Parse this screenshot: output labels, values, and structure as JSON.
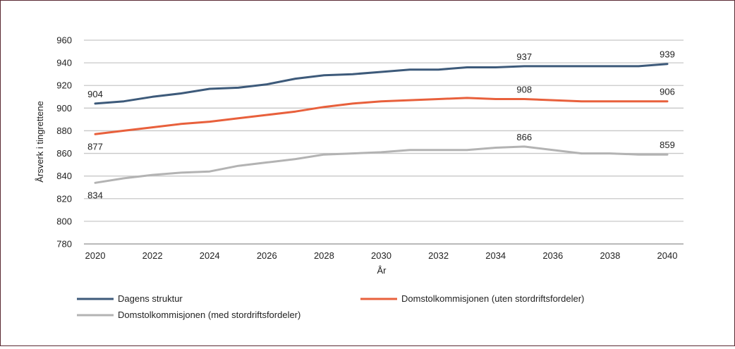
{
  "chart_data": {
    "type": "line",
    "title": "",
    "xlabel": "År",
    "ylabel": "Årsverk i tingrettene",
    "ylim": [
      780,
      960
    ],
    "yticks": [
      780,
      800,
      820,
      840,
      860,
      880,
      900,
      920,
      940,
      960
    ],
    "xlim": [
      2020,
      2040
    ],
    "xticks": [
      2020,
      2022,
      2024,
      2026,
      2028,
      2030,
      2032,
      2034,
      2036,
      2038,
      2040
    ],
    "x": [
      2020,
      2021,
      2022,
      2023,
      2024,
      2025,
      2026,
      2027,
      2028,
      2029,
      2030,
      2031,
      2032,
      2033,
      2034,
      2035,
      2036,
      2037,
      2038,
      2039,
      2040
    ],
    "grid": true,
    "legend_position": "bottom",
    "series": [
      {
        "name": "Dagens struktur",
        "color": "#3d5a7a",
        "values": [
          904,
          906,
          910,
          913,
          917,
          918,
          921,
          926,
          929,
          930,
          932,
          934,
          934,
          936,
          936,
          937,
          937,
          937,
          937,
          937,
          939
        ],
        "labels": [
          {
            "x": 2020,
            "text": "904"
          },
          {
            "x": 2035,
            "text": "937"
          },
          {
            "x": 2040,
            "text": "939"
          }
        ]
      },
      {
        "name": "Domstolkommisjonen (uten stordriftsfordeler)",
        "color": "#e8603c",
        "values": [
          877,
          880,
          883,
          886,
          888,
          891,
          894,
          897,
          901,
          904,
          906,
          907,
          908,
          909,
          908,
          908,
          907,
          906,
          906,
          906,
          906
        ],
        "labels": [
          {
            "x": 2020,
            "text": "877"
          },
          {
            "x": 2035,
            "text": "908"
          },
          {
            "x": 2040,
            "text": "906"
          }
        ]
      },
      {
        "name": "Domstolkommisjonen (med stordriftsfordeler)",
        "color": "#b3b3b3",
        "values": [
          834,
          838,
          841,
          843,
          844,
          849,
          852,
          855,
          859,
          860,
          861,
          863,
          863,
          863,
          865,
          866,
          863,
          860,
          860,
          859,
          859
        ],
        "labels": [
          {
            "x": 2020,
            "text": "834"
          },
          {
            "x": 2035,
            "text": "866"
          },
          {
            "x": 2040,
            "text": "859"
          }
        ]
      }
    ]
  }
}
